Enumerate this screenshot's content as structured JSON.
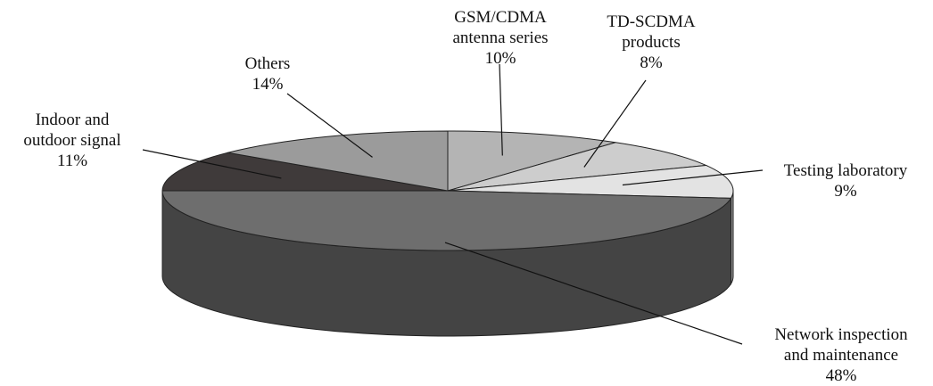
{
  "chart_data": {
    "type": "pie",
    "style": "3d-exploded-none",
    "slices": [
      {
        "key": "gsm",
        "label_lines": [
          "GSM/CDMA",
          "antenna series"
        ],
        "value_text": "10%",
        "value": 10,
        "color": "#b4b4b4"
      },
      {
        "key": "tdscdma",
        "label_lines": [
          "TD-SCDMA",
          "products"
        ],
        "value_text": "8%",
        "value": 8,
        "color": "#cdcdcd"
      },
      {
        "key": "testing",
        "label_lines": [
          "Testing laboratory"
        ],
        "value_text": "9%",
        "value": 9,
        "color": "#e3e3e3"
      },
      {
        "key": "network",
        "label_lines": [
          "Network inspection",
          "and maintenance"
        ],
        "value_text": "48%",
        "value": 48,
        "color": "#6e6e6e"
      },
      {
        "key": "indoor",
        "label_lines": [
          "Indoor and",
          "outdoor signal"
        ],
        "value_text": "11%",
        "value": 11,
        "color": "#3f3a3a"
      },
      {
        "key": "others",
        "label_lines": [
          "Others"
        ],
        "value_text": "14%",
        "value": 14,
        "color": "#9b9b9b"
      }
    ]
  }
}
